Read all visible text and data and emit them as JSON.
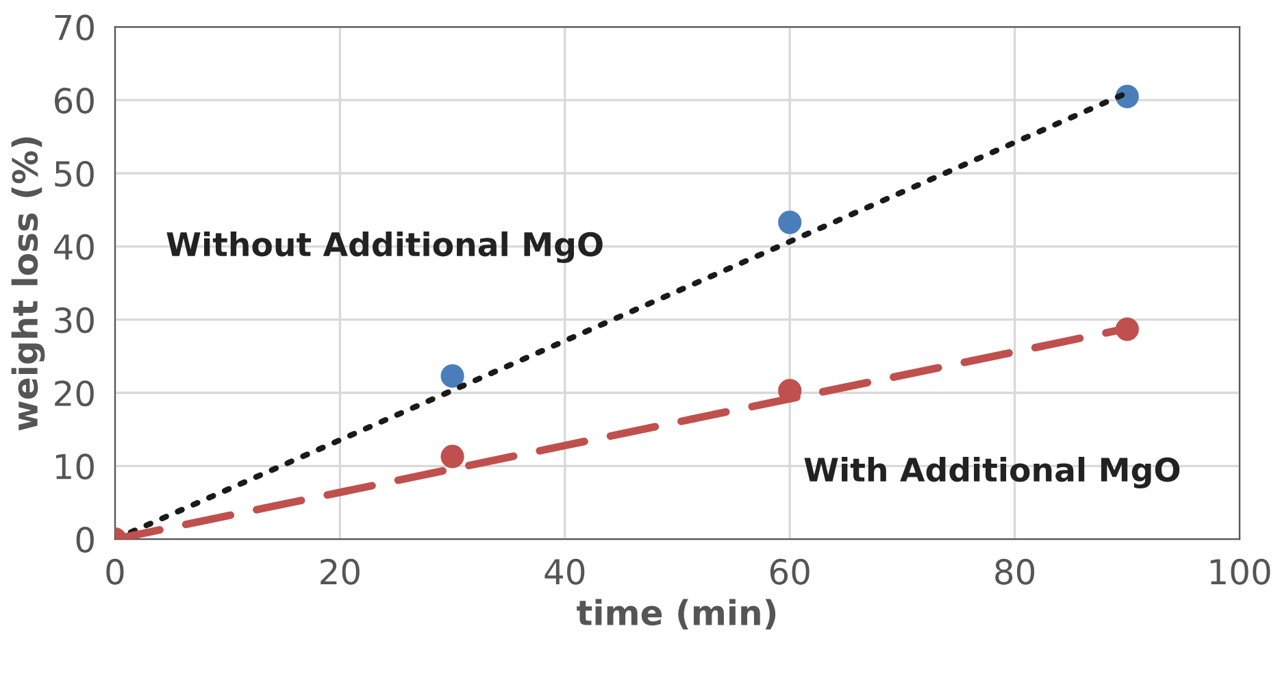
{
  "chart_data": {
    "type": "scatter",
    "xlabel": "time (min)",
    "ylabel": "weight loss (%)",
    "xlim": [
      0,
      100
    ],
    "xticks": [
      0,
      20,
      40,
      60,
      80,
      100
    ],
    "ylim": [
      0,
      70
    ],
    "yticks": [
      0,
      10,
      20,
      30,
      40,
      50,
      60,
      70
    ],
    "grid": true,
    "marker": "circle",
    "series": [
      {
        "type": "line",
        "color": "#1a1a1a",
        "line_style": "dotted",
        "marker": "none",
        "x": [
          0,
          90
        ],
        "values": [
          0,
          61
        ]
      },
      {
        "type": "line",
        "color": "#c0504d",
        "line_style": "dashed",
        "marker": "none",
        "x": [
          0,
          90
        ],
        "values": [
          0,
          28.8
        ]
      },
      {
        "color": "#4a7ebb",
        "x": [
          30,
          60,
          90
        ],
        "values": [
          22.3,
          43.3,
          60.5
        ]
      },
      {
        "color": "#c0504d",
        "x": [
          0,
          30,
          60,
          90
        ],
        "values": [
          0,
          11.3,
          20.3,
          28.7
        ]
      }
    ],
    "annotations": [
      "Without Additional MgO",
      "With Additional MgO"
    ]
  }
}
